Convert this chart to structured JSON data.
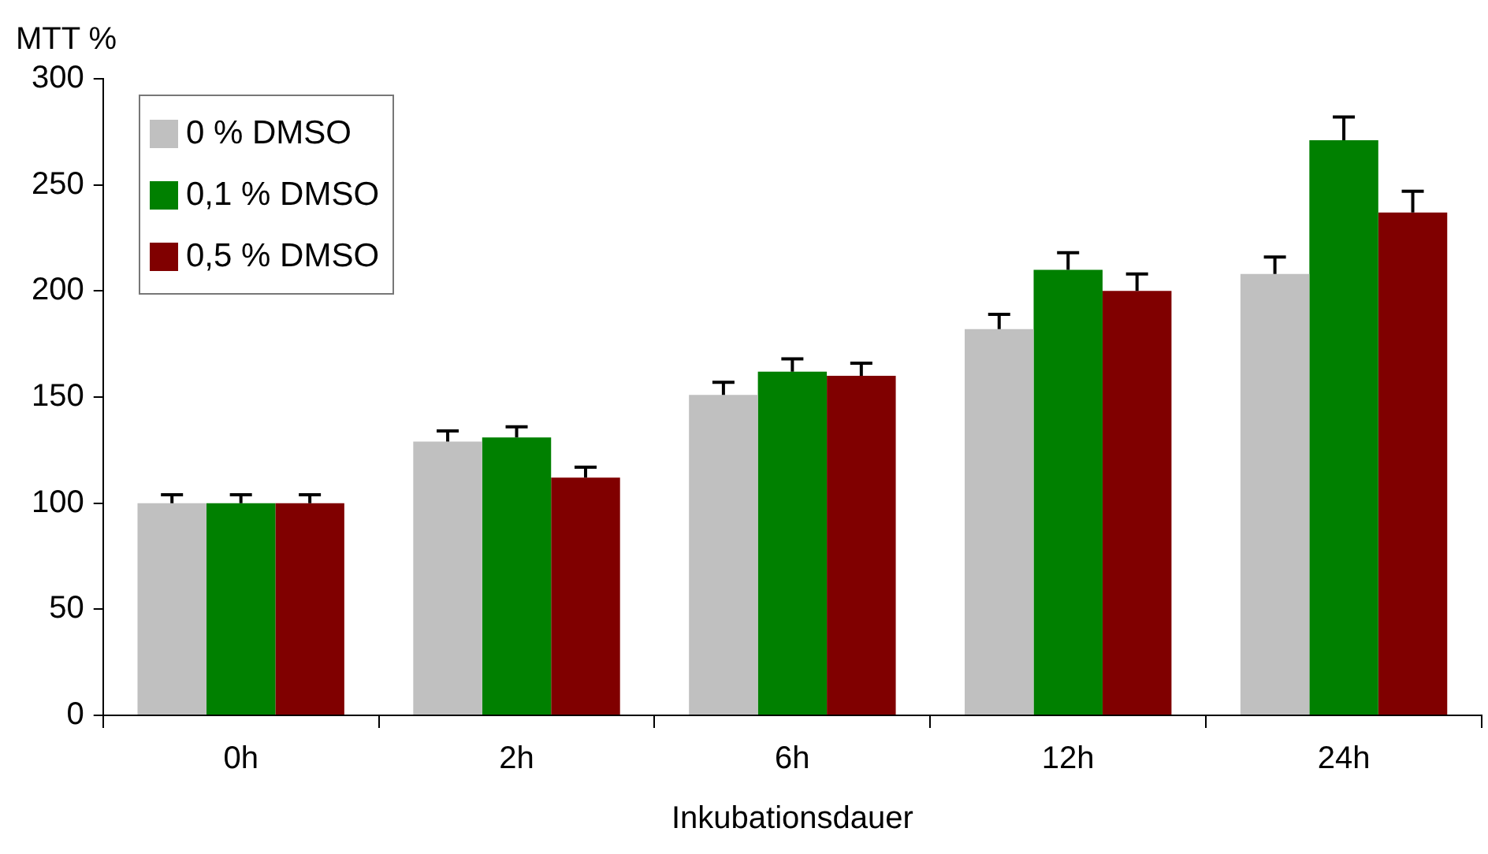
{
  "chart_data": {
    "type": "bar",
    "xlabel": "Inkubationsdauer",
    "ylabel": "MTT %",
    "categories": [
      "0h",
      "2h",
      "6h",
      "12h",
      "24h"
    ],
    "series": [
      {
        "name": "0 % DMSO",
        "color": "#c0c0c0",
        "values": [
          100,
          129,
          151,
          182,
          208
        ],
        "errors": [
          [
            100,
            104
          ],
          [
            129,
            134
          ],
          [
            151,
            157
          ],
          [
            182,
            189
          ],
          [
            208,
            216
          ]
        ]
      },
      {
        "name": "0,1 % DMSO",
        "color": "#008000",
        "values": [
          100,
          131,
          162,
          210,
          271
        ],
        "errors": [
          [
            100,
            104
          ],
          [
            131,
            136
          ],
          [
            162,
            168
          ],
          [
            210,
            218
          ],
          [
            271,
            282
          ]
        ]
      },
      {
        "name": "0,5 % DMSO",
        "color": "#800000",
        "values": [
          100,
          112,
          160,
          200,
          237
        ],
        "errors": [
          [
            100,
            104
          ],
          [
            112,
            117
          ],
          [
            160,
            166
          ],
          [
            200,
            208
          ],
          [
            237,
            247
          ]
        ]
      }
    ],
    "ylim": [
      0,
      300
    ],
    "yticks": [
      0,
      50,
      100,
      150,
      200,
      250,
      300
    ],
    "legend": "top left",
    "grid": false
  }
}
